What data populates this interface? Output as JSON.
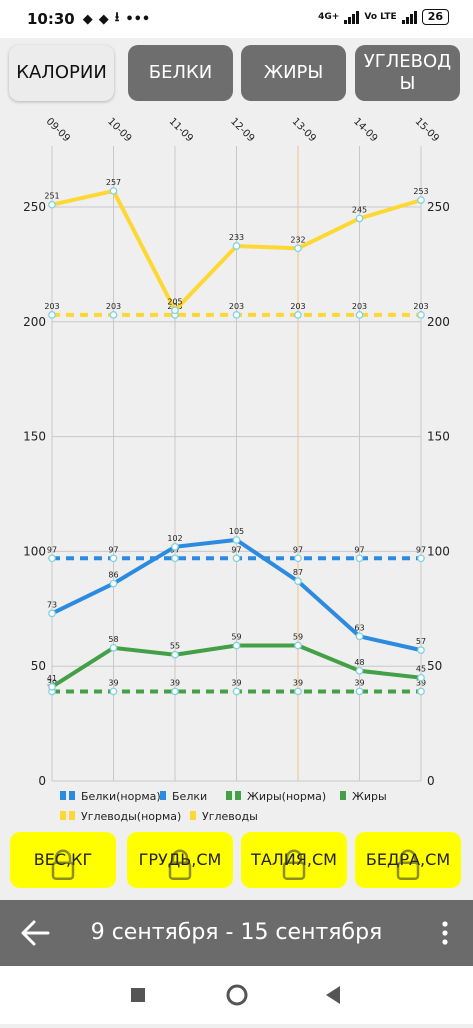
{
  "status": {
    "time": "10:30",
    "net": "4G+",
    "volte": "Vo LTE",
    "battery": "26"
  },
  "tabs": [
    {
      "label": "КАЛОРИИ",
      "active": true
    },
    {
      "label": "БЕЛКИ",
      "active": false
    },
    {
      "label": "ЖИРЫ",
      "active": false
    },
    {
      "label": "УГЛЕВОДЫ",
      "active": false
    }
  ],
  "chart_data": {
    "type": "line",
    "categories": [
      "09-09",
      "10-09",
      "11-09",
      "12-09",
      "13-09",
      "14-09",
      "15-09"
    ],
    "ylim": [
      0,
      250
    ],
    "yticks": [
      0,
      50,
      100,
      150,
      200,
      250
    ],
    "grid": true,
    "legend": "bottom",
    "highlight_category": "13-09",
    "series": [
      {
        "name": "Белки(норма)",
        "color": "#2b8be0",
        "dashed": true,
        "values": [
          97,
          97,
          97,
          97,
          97,
          97,
          97
        ]
      },
      {
        "name": "Белки",
        "color": "#2b8be0",
        "dashed": false,
        "values": [
          73,
          86,
          102,
          105,
          87,
          63,
          57
        ]
      },
      {
        "name": "Жиры(норма)",
        "color": "#43a047",
        "dashed": true,
        "values": [
          39,
          39,
          39,
          39,
          39,
          39,
          39
        ]
      },
      {
        "name": "Жиры",
        "color": "#43a047",
        "dashed": false,
        "values": [
          41,
          58,
          55,
          59,
          59,
          48,
          45
        ]
      },
      {
        "name": "Углеводы(норма)",
        "color": "#fdd835",
        "dashed": true,
        "values": [
          203,
          203,
          203,
          203,
          203,
          203,
          203
        ]
      },
      {
        "name": "Углеводы",
        "color": "#fdd835",
        "dashed": false,
        "values": [
          251,
          257,
          205,
          233,
          232,
          245,
          253
        ]
      }
    ]
  },
  "buttons": [
    {
      "label": "ВЕС,КГ"
    },
    {
      "label": "ГРУДЬ,СМ"
    },
    {
      "label": "ТАЛИЯ,СМ"
    },
    {
      "label": "БЕДРА,СМ"
    }
  ],
  "nav": {
    "range": "9 сентября - 15 сентября"
  },
  "colors": {
    "highlight": "#ffff00",
    "bar": "#6b6b6b"
  }
}
